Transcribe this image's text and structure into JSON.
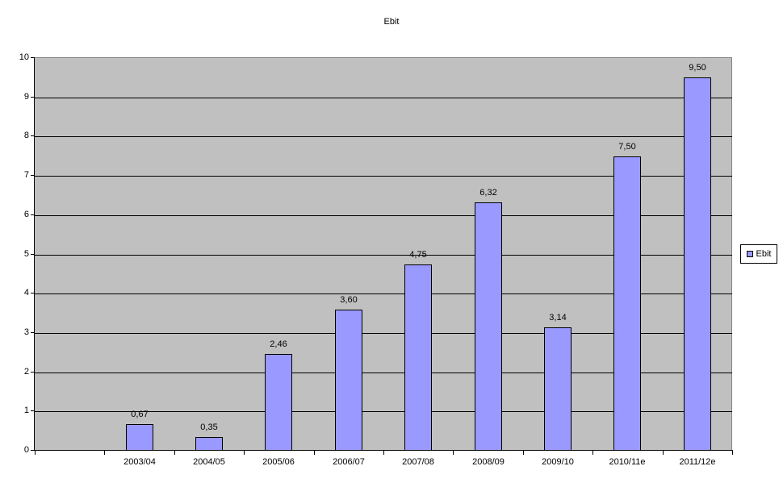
{
  "title": "Ebit",
  "legend": {
    "label": "Ebit",
    "position": "right"
  },
  "colors": {
    "bar_fill": "#9999ff",
    "bar_border": "#000000",
    "plot_background": "#c0c0c0",
    "plot_border": "#848284",
    "gridline": "#000000",
    "axis": "#000000",
    "page_background": "#ffffff",
    "text": "#000000",
    "legend_background": "#ffffff",
    "legend_border": "#000000"
  },
  "chart_data": {
    "type": "bar",
    "title": "Ebit",
    "categories": [
      "2003/04",
      "2004/05",
      "2005/06",
      "2006/07",
      "2007/08",
      "2008/09",
      "2009/10",
      "2010/11e",
      "2011/12e"
    ],
    "values": [
      0.67,
      0.35,
      2.46,
      3.6,
      4.75,
      6.32,
      3.14,
      7.5,
      9.5
    ],
    "data_labels": [
      "0,67",
      "0,35",
      "2,46",
      "3,60",
      "4,75",
      "6,32",
      "3,14",
      "7,50",
      "9,50"
    ],
    "series_name": "Ebit",
    "xlabel": "",
    "ylabel": "",
    "ylim": [
      0,
      10
    ],
    "y_ticks": [
      0,
      1,
      2,
      3,
      4,
      5,
      6,
      7,
      8,
      9,
      10
    ],
    "grid": true,
    "legend_position": "right",
    "leading_empty_slots": 1,
    "decimal_separator": ","
  }
}
